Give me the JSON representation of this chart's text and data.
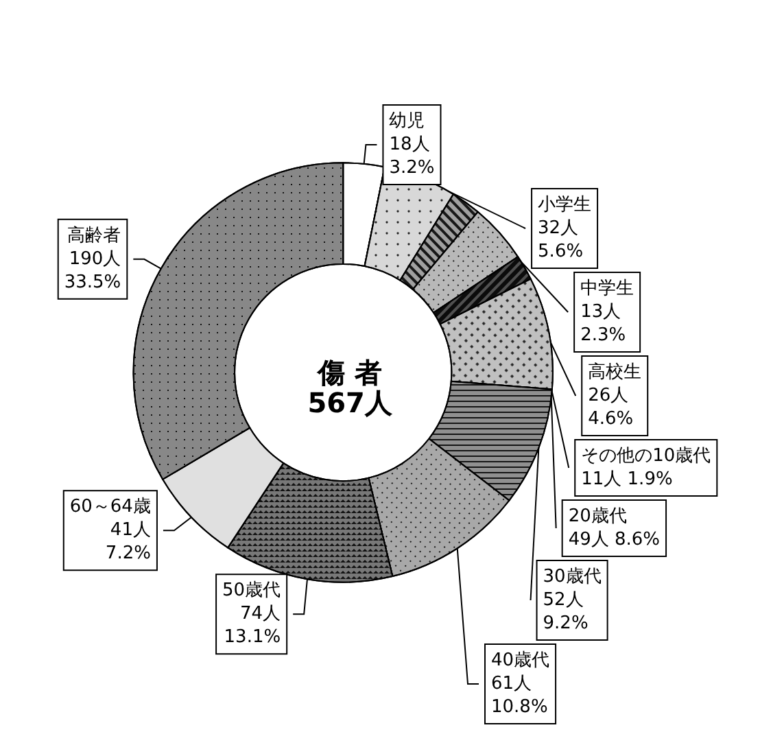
{
  "chart_data": {
    "type": "donut",
    "title": "傷 者",
    "subtitle": "567人",
    "categories": [
      "幼児",
      "小学生",
      "中学生",
      "高校生",
      "その他の10歳代",
      "20歳代",
      "30歳代",
      "40歳代",
      "50歳代",
      "60～64歳",
      "高齢者"
    ],
    "values": [
      18,
      32,
      13,
      26,
      11,
      49,
      52,
      61,
      74,
      41,
      190
    ],
    "value_labels": [
      "18人\n3.2%",
      "32人\n5.6%",
      "13人\n2.3%",
      "26人\n4.6%",
      "11人 1.9%",
      "49人 8.6%",
      "52人\n9.2%",
      "61人\n10.8%",
      "74人\n13.1%",
      "41人\n7.2%",
      "190人\n33.5%"
    ],
    "colors": [
      "#ffffff",
      "#d8d8d8",
      "#a0a0a0",
      "#b8b8b8",
      "#505050",
      "#c0c0c0",
      "#909090",
      "#a8a8a8",
      "#787878",
      "#e0e0e0",
      "#888888"
    ],
    "legend": false
  }
}
